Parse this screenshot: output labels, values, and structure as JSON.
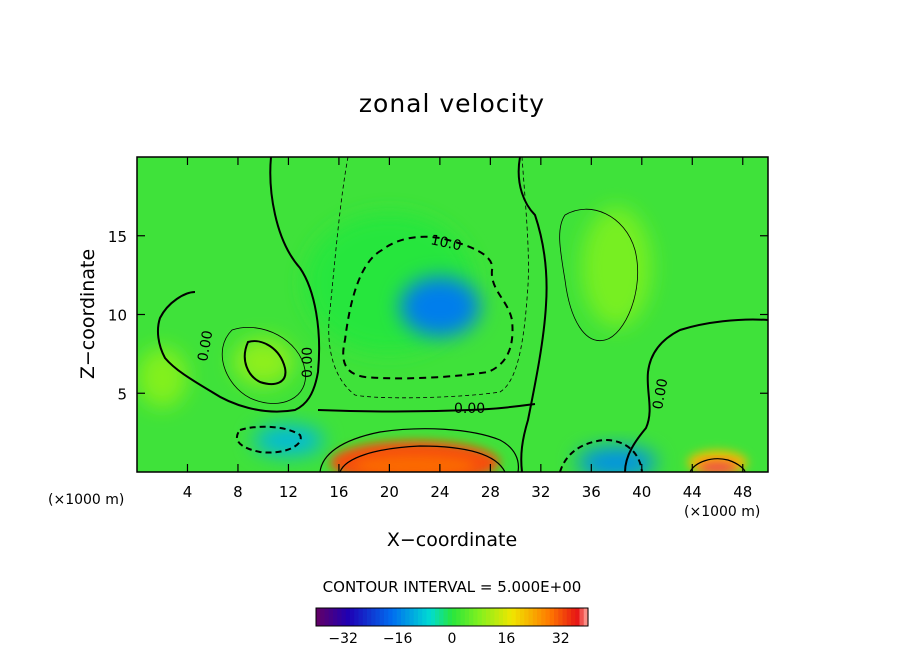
{
  "chart_data": {
    "type": "heatmap",
    "title": "zonal velocity",
    "xlabel": "X−coordinate",
    "ylabel": "Z−coordinate",
    "x_unit_left": "(×1000 m)",
    "x_unit_right": "(×1000 m)",
    "xlim": [
      0,
      50
    ],
    "ylim": [
      0,
      20
    ],
    "x_ticks": [
      4,
      8,
      12,
      16,
      20,
      24,
      28,
      32,
      36,
      40,
      44,
      48
    ],
    "y_ticks": [
      5,
      10,
      15
    ],
    "contour_labels": [
      "10.0",
      "0.00",
      "0.00",
      "0.00",
      "0.00"
    ],
    "contour_interval_text": "CONTOUR INTERVAL = 5.000E+00",
    "colorbar": {
      "range": [
        -40,
        40
      ],
      "ticks": [
        "−32",
        "−16",
        "0",
        "16",
        "32"
      ]
    },
    "field_features": [
      {
        "x": 20,
        "z": 12,
        "value": 0
      },
      {
        "x": 24,
        "z": 10.5,
        "value": -16
      },
      {
        "x": 22,
        "z": 0.6,
        "value": 32
      },
      {
        "x": 38,
        "z": 0.6,
        "value": -14
      },
      {
        "x": 10,
        "z": 7,
        "value": 9
      },
      {
        "x": 38,
        "z": 13,
        "value": 7
      },
      {
        "x": 46,
        "z": 0.6,
        "value": 22
      },
      {
        "x": 2,
        "z": 6,
        "value": 8
      },
      {
        "x": 12,
        "z": 2,
        "value": -10
      }
    ]
  }
}
